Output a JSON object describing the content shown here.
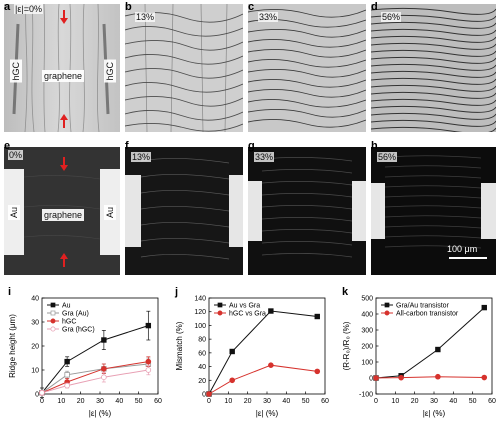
{
  "panels_top": [
    {
      "letter": "a",
      "strain": "|ε|=0%"
    },
    {
      "letter": "b",
      "strain": "13%"
    },
    {
      "letter": "c",
      "strain": "33%"
    },
    {
      "letter": "d",
      "strain": "56%"
    }
  ],
  "panels_mid": [
    {
      "letter": "e",
      "strain": "0%"
    },
    {
      "letter": "f",
      "strain": "13%"
    },
    {
      "letter": "g",
      "strain": "33%"
    },
    {
      "letter": "h",
      "strain": "56%"
    }
  ],
  "labels": {
    "graphene": "graphene",
    "hgc": "hGC",
    "au": "Au",
    "scale": "100 μm"
  },
  "chart_data": [
    {
      "letter": "i",
      "type": "line",
      "xlabel": "|ε| (%)",
      "ylabel": "Ridge height (μm)",
      "xlim": [
        0,
        60
      ],
      "ylim": [
        0,
        40
      ],
      "xticks": [
        0,
        10,
        20,
        30,
        40,
        50,
        60
      ],
      "yticks": [
        0,
        10,
        20,
        30,
        40
      ],
      "legend_position": "top-left",
      "series": [
        {
          "name": "Au",
          "color": "#111111",
          "marker": "square",
          "filled": true,
          "x": [
            0,
            13,
            32,
            55
          ],
          "y": [
            0.5,
            13.5,
            22.5,
            28.5
          ],
          "err": [
            2,
            2,
            4,
            6
          ]
        },
        {
          "name": "Gra (Au)",
          "color": "#9a9a9a",
          "marker": "square",
          "filled": false,
          "x": [
            0,
            13,
            32,
            55
          ],
          "y": [
            0.5,
            8,
            10.5,
            12.5
          ],
          "err": [
            1,
            1.5,
            2,
            2.5
          ]
        },
        {
          "name": "hGC",
          "color": "#d6322d",
          "marker": "circle",
          "filled": true,
          "x": [
            0,
            13,
            32,
            55
          ],
          "y": [
            0.5,
            5,
            10.5,
            13.5
          ],
          "err": [
            1,
            1.5,
            2,
            2
          ]
        },
        {
          "name": "Gra (hGC)",
          "color": "#e8a0b4",
          "marker": "circle",
          "filled": false,
          "x": [
            0,
            13,
            32,
            55
          ],
          "y": [
            0.5,
            3.5,
            7,
            10
          ],
          "err": [
            1,
            1,
            2,
            2
          ]
        }
      ]
    },
    {
      "letter": "j",
      "type": "line",
      "xlabel": "|ε| (%)",
      "ylabel": "Mismatch (%)",
      "xlim": [
        0,
        60
      ],
      "ylim": [
        0,
        140
      ],
      "xticks": [
        0,
        10,
        20,
        30,
        40,
        50,
        60
      ],
      "yticks": [
        0,
        20,
        40,
        60,
        80,
        100,
        120,
        140
      ],
      "legend_position": "top-left",
      "series": [
        {
          "name": "Au vs Gra",
          "color": "#111111",
          "marker": "square",
          "filled": true,
          "x": [
            0,
            12,
            32,
            56
          ],
          "y": [
            0,
            62,
            121,
            113
          ]
        },
        {
          "name": "hGC vs Gra",
          "color": "#d6322d",
          "marker": "circle",
          "filled": true,
          "x": [
            0,
            12,
            32,
            56
          ],
          "y": [
            0,
            20,
            42,
            33
          ]
        }
      ]
    },
    {
      "letter": "k",
      "type": "line",
      "xlabel": "|ε| (%)",
      "ylabel": "(R-R₀)/R₀ (%)",
      "xlim": [
        0,
        60
      ],
      "ylim": [
        -100,
        500
      ],
      "xticks": [
        0,
        10,
        20,
        30,
        40,
        50,
        60
      ],
      "yticks": [
        -100,
        0,
        100,
        200,
        300,
        400,
        500
      ],
      "legend_position": "top-left",
      "series": [
        {
          "name": "Gra/Au transistor",
          "color": "#111111",
          "marker": "square",
          "filled": true,
          "x": [
            0,
            13,
            32,
            56
          ],
          "y": [
            0,
            14,
            178,
            440
          ]
        },
        {
          "name": "All-carbon transistor",
          "color": "#d6322d",
          "marker": "circle",
          "filled": true,
          "x": [
            0,
            13,
            32,
            56
          ],
          "y": [
            0,
            2,
            8,
            3
          ]
        }
      ]
    }
  ]
}
